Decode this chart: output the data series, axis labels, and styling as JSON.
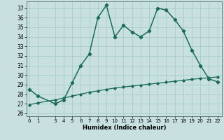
{
  "title": "",
  "xlabel": "Humidex (Indice chaleur)",
  "background_color": "#c8e0e0",
  "grid_color": "#a8cccc",
  "line_color": "#1a6b5a",
  "x_main": [
    0,
    1,
    3,
    4,
    5,
    6,
    7,
    8,
    9,
    10,
    11,
    12,
    13,
    14,
    15,
    16,
    17,
    18,
    19,
    20,
    21,
    22
  ],
  "y_main": [
    28.5,
    27.8,
    27.0,
    27.4,
    29.2,
    31.0,
    32.2,
    36.0,
    37.3,
    34.0,
    35.2,
    34.5,
    34.0,
    34.6,
    37.0,
    36.8,
    35.8,
    34.6,
    32.6,
    31.0,
    29.6,
    29.3
  ],
  "x_ref": [
    0,
    1,
    3,
    4,
    5,
    6,
    7,
    8,
    9,
    10,
    11,
    12,
    13,
    14,
    15,
    16,
    17,
    18,
    19,
    20,
    21,
    22
  ],
  "y_ref": [
    26.9,
    27.1,
    27.4,
    27.6,
    27.8,
    28.0,
    28.2,
    28.35,
    28.5,
    28.65,
    28.75,
    28.85,
    28.95,
    29.05,
    29.15,
    29.25,
    29.35,
    29.45,
    29.55,
    29.65,
    29.72,
    29.8
  ],
  "yticks": [
    26,
    27,
    28,
    29,
    30,
    31,
    32,
    33,
    34,
    35,
    36,
    37
  ],
  "xticks": [
    0,
    1,
    3,
    4,
    5,
    6,
    7,
    8,
    9,
    10,
    11,
    12,
    13,
    14,
    15,
    16,
    17,
    18,
    19,
    20,
    21,
    22
  ],
  "xlim": [
    -0.3,
    22.5
  ],
  "ylim": [
    25.7,
    37.7
  ]
}
